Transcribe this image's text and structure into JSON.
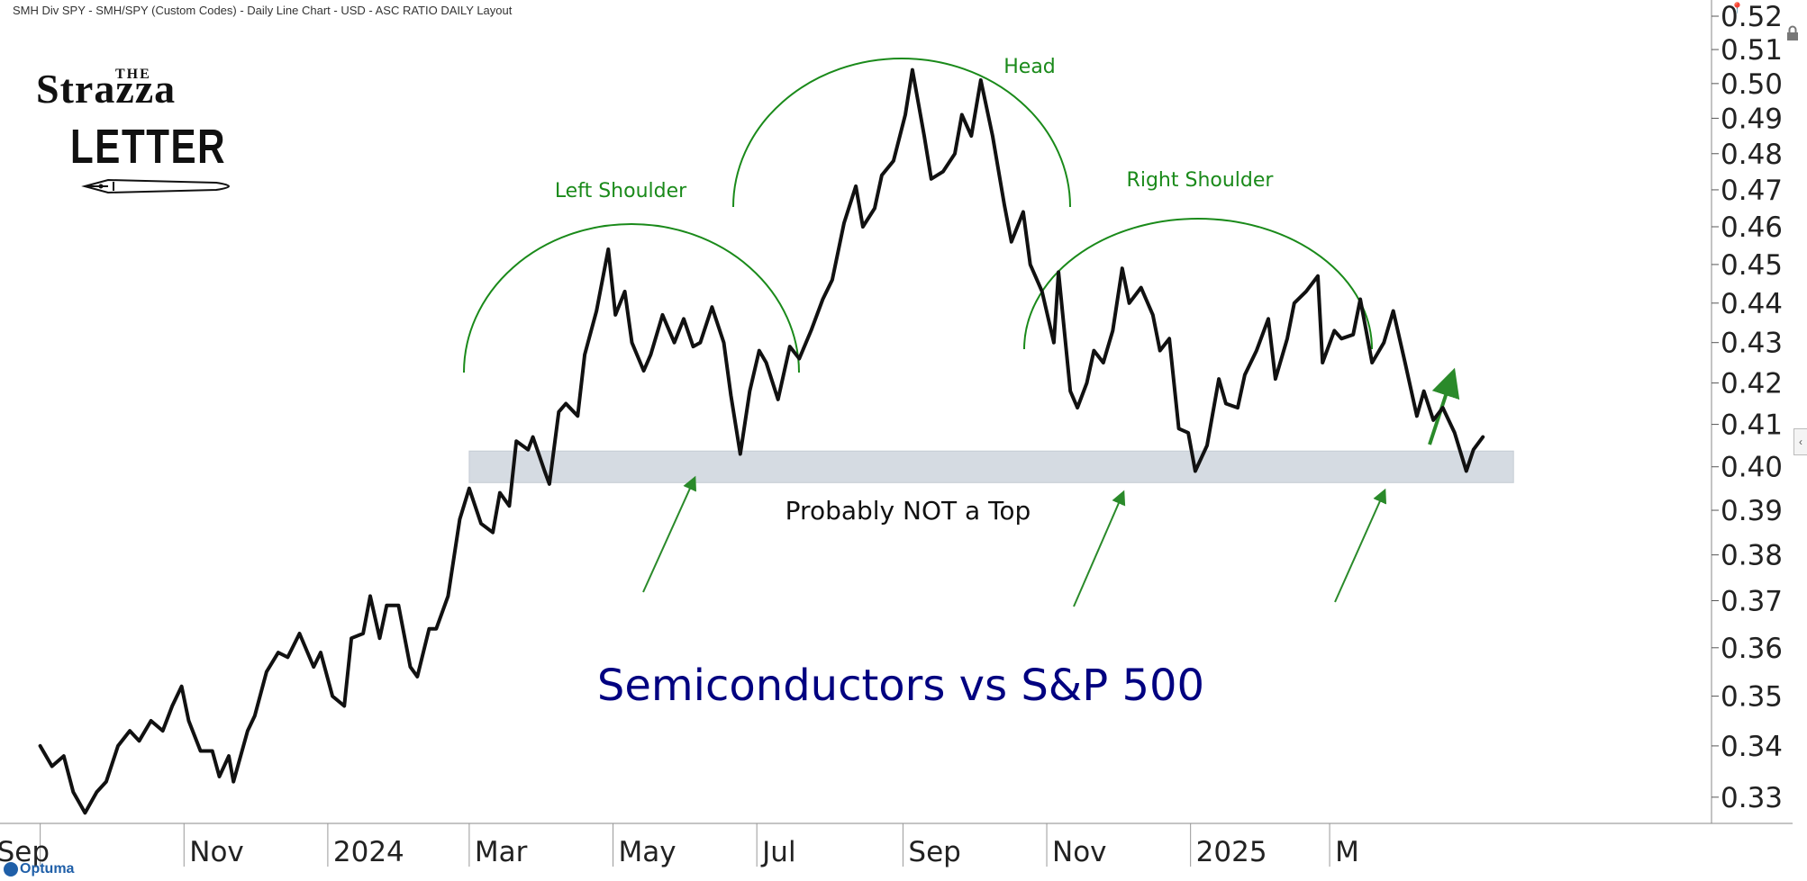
{
  "header": {
    "title": "SMH Div SPY - SMH/SPY (Custom Codes) - Daily Line Chart - USD - ASC RATIO DAILY Layout"
  },
  "logo": {
    "the": "THE",
    "strazza": "Strazza",
    "letter": "LETTER"
  },
  "branding": {
    "vendor": "Optuma"
  },
  "icons": {
    "lock": "lock-icon",
    "pin": "pin-icon",
    "collapse": "chevron-left-icon",
    "pen": "pen-nib-icon"
  },
  "colors": {
    "line": "#111111",
    "annotation": "#1a8a1a",
    "arrow": "#2a8a2a",
    "title": "#000080",
    "support_band": "#d5dbe2"
  },
  "chart_data": {
    "type": "line",
    "title": "Semiconductors vs S&P 500",
    "xlabel": "",
    "ylabel": "",
    "x_ticks": [
      "Sep",
      "Nov",
      "2024",
      "Mar",
      "May",
      "Jul",
      "Sep",
      "Nov",
      "2025",
      "M"
    ],
    "y_ticks": [
      0.33,
      0.34,
      0.35,
      0.36,
      0.37,
      0.38,
      0.39,
      0.4,
      0.41,
      0.42,
      0.43,
      0.44,
      0.45,
      0.46,
      0.47,
      0.48,
      0.49,
      0.5,
      0.51,
      0.52
    ],
    "ylim": [
      0.325,
      0.52
    ],
    "scale": "log",
    "grid": false,
    "support_band": [
      0.398,
      0.402
    ],
    "annotations": {
      "left_shoulder": "Left Shoulder",
      "head": "Head",
      "right_shoulder": "Right Shoulder",
      "note": "Probably NOT a Top"
    },
    "series": [
      {
        "values": [
          [
            "2023-09-01",
            0.34
          ],
          [
            "2023-09-06",
            0.336
          ],
          [
            "2023-09-11",
            0.338
          ],
          [
            "2023-09-15",
            0.331
          ],
          [
            "2023-09-20",
            0.327
          ],
          [
            "2023-09-25",
            0.331
          ],
          [
            "2023-09-29",
            0.333
          ],
          [
            "2023-10-04",
            0.34
          ],
          [
            "2023-10-09",
            0.343
          ],
          [
            "2023-10-13",
            0.341
          ],
          [
            "2023-10-18",
            0.345
          ],
          [
            "2023-10-23",
            0.343
          ],
          [
            "2023-10-27",
            0.348
          ],
          [
            "2023-10-31",
            0.352
          ],
          [
            "2023-11-03",
            0.345
          ],
          [
            "2023-11-08",
            0.339
          ],
          [
            "2023-11-13",
            0.339
          ],
          [
            "2023-11-16",
            0.334
          ],
          [
            "2023-11-20",
            0.338
          ],
          [
            "2023-11-22",
            0.333
          ],
          [
            "2023-11-28",
            0.343
          ],
          [
            "2023-12-01",
            0.346
          ],
          [
            "2023-12-06",
            0.355
          ],
          [
            "2023-12-11",
            0.359
          ],
          [
            "2023-12-15",
            0.358
          ],
          [
            "2023-12-20",
            0.363
          ],
          [
            "2023-12-26",
            0.356
          ],
          [
            "2023-12-29",
            0.359
          ],
          [
            "2024-01-03",
            0.35
          ],
          [
            "2024-01-08",
            0.348
          ],
          [
            "2024-01-11",
            0.362
          ],
          [
            "2024-01-16",
            0.363
          ],
          [
            "2024-01-19",
            0.371
          ],
          [
            "2024-01-23",
            0.362
          ],
          [
            "2024-01-26",
            0.369
          ],
          [
            "2024-01-31",
            0.369
          ],
          [
            "2024-02-05",
            0.356
          ],
          [
            "2024-02-08",
            0.354
          ],
          [
            "2024-02-13",
            0.364
          ],
          [
            "2024-02-16",
            0.364
          ],
          [
            "2024-02-21",
            0.371
          ],
          [
            "2024-02-26",
            0.388
          ],
          [
            "2024-03-01",
            0.395
          ],
          [
            "2024-03-06",
            0.387
          ],
          [
            "2024-03-11",
            0.385
          ],
          [
            "2024-03-14",
            0.394
          ],
          [
            "2024-03-18",
            0.391
          ],
          [
            "2024-03-21",
            0.406
          ],
          [
            "2024-03-26",
            0.404
          ],
          [
            "2024-03-28",
            0.407
          ],
          [
            "2024-04-02",
            0.399
          ],
          [
            "2024-04-04",
            0.396
          ],
          [
            "2024-04-08",
            0.413
          ],
          [
            "2024-04-11",
            0.415
          ],
          [
            "2024-04-16",
            0.412
          ],
          [
            "2024-04-19",
            0.427
          ],
          [
            "2024-04-24",
            0.438
          ],
          [
            "2024-04-29",
            0.454
          ],
          [
            "2024-05-02",
            0.437
          ],
          [
            "2024-05-06",
            0.443
          ],
          [
            "2024-05-09",
            0.43
          ],
          [
            "2024-05-14",
            0.423
          ],
          [
            "2024-05-17",
            0.427
          ],
          [
            "2024-05-22",
            0.437
          ],
          [
            "2024-05-27",
            0.43
          ],
          [
            "2024-05-31",
            0.436
          ],
          [
            "2024-06-04",
            0.429
          ],
          [
            "2024-06-07",
            0.43
          ],
          [
            "2024-06-12",
            0.439
          ],
          [
            "2024-06-17",
            0.43
          ],
          [
            "2024-06-20",
            0.417
          ],
          [
            "2024-06-24",
            0.403
          ],
          [
            "2024-06-28",
            0.418
          ],
          [
            "2024-07-02",
            0.428
          ],
          [
            "2024-07-05",
            0.425
          ],
          [
            "2024-07-10",
            0.416
          ],
          [
            "2024-07-15",
            0.429
          ],
          [
            "2024-07-19",
            0.426
          ],
          [
            "2024-07-24",
            0.433
          ],
          [
            "2024-07-29",
            0.441
          ],
          [
            "2024-08-02",
            0.446
          ],
          [
            "2024-08-07",
            0.461
          ],
          [
            "2024-08-12",
            0.471
          ],
          [
            "2024-08-15",
            0.46
          ],
          [
            "2024-08-20",
            0.465
          ],
          [
            "2024-08-23",
            0.474
          ],
          [
            "2024-08-28",
            0.478
          ],
          [
            "2024-09-02",
            0.491
          ],
          [
            "2024-09-05",
            0.504
          ],
          [
            "2024-09-10",
            0.485
          ],
          [
            "2024-09-13",
            0.473
          ],
          [
            "2024-09-18",
            0.475
          ],
          [
            "2024-09-23",
            0.48
          ],
          [
            "2024-09-26",
            0.491
          ],
          [
            "2024-09-30",
            0.485
          ],
          [
            "2024-10-04",
            0.501
          ],
          [
            "2024-10-09",
            0.485
          ],
          [
            "2024-10-14",
            0.466
          ],
          [
            "2024-10-17",
            0.456
          ],
          [
            "2024-10-22",
            0.464
          ],
          [
            "2024-10-25",
            0.45
          ],
          [
            "2024-10-30",
            0.443
          ],
          [
            "2024-11-04",
            0.43
          ],
          [
            "2024-11-06",
            0.448
          ],
          [
            "2024-11-11",
            0.418
          ],
          [
            "2024-11-14",
            0.414
          ],
          [
            "2024-11-18",
            0.42
          ],
          [
            "2024-11-21",
            0.428
          ],
          [
            "2024-11-25",
            0.425
          ],
          [
            "2024-11-29",
            0.433
          ],
          [
            "2024-12-03",
            0.449
          ],
          [
            "2024-12-06",
            0.44
          ],
          [
            "2024-12-11",
            0.444
          ],
          [
            "2024-12-16",
            0.437
          ],
          [
            "2024-12-19",
            0.428
          ],
          [
            "2024-12-23",
            0.431
          ],
          [
            "2024-12-27",
            0.409
          ],
          [
            "2024-12-31",
            0.408
          ],
          [
            "2025-01-03",
            0.399
          ],
          [
            "2025-01-08",
            0.405
          ],
          [
            "2025-01-13",
            0.421
          ],
          [
            "2025-01-16",
            0.415
          ],
          [
            "2025-01-21",
            0.414
          ],
          [
            "2025-01-24",
            0.422
          ],
          [
            "2025-01-29",
            0.428
          ],
          [
            "2025-02-03",
            0.436
          ],
          [
            "2025-02-06",
            0.421
          ],
          [
            "2025-02-11",
            0.431
          ],
          [
            "2025-02-14",
            0.44
          ],
          [
            "2025-02-19",
            0.443
          ],
          [
            "2025-02-24",
            0.447
          ],
          [
            "2025-02-26",
            0.425
          ],
          [
            "2025-03-03",
            0.433
          ],
          [
            "2025-03-06",
            0.431
          ],
          [
            "2025-03-11",
            0.432
          ],
          [
            "2025-03-14",
            0.441
          ],
          [
            "2025-03-19",
            0.425
          ],
          [
            "2025-03-24",
            0.43
          ],
          [
            "2025-03-28",
            0.438
          ],
          [
            "2025-04-02",
            0.425
          ],
          [
            "2025-04-07",
            0.412
          ],
          [
            "2025-04-10",
            0.418
          ],
          [
            "2025-04-14",
            0.411
          ],
          [
            "2025-04-18",
            0.414
          ],
          [
            "2025-04-23",
            0.408
          ],
          [
            "2025-04-28",
            0.399
          ],
          [
            "2025-05-01",
            0.404
          ],
          [
            "2025-05-05",
            0.407
          ]
        ]
      }
    ]
  }
}
